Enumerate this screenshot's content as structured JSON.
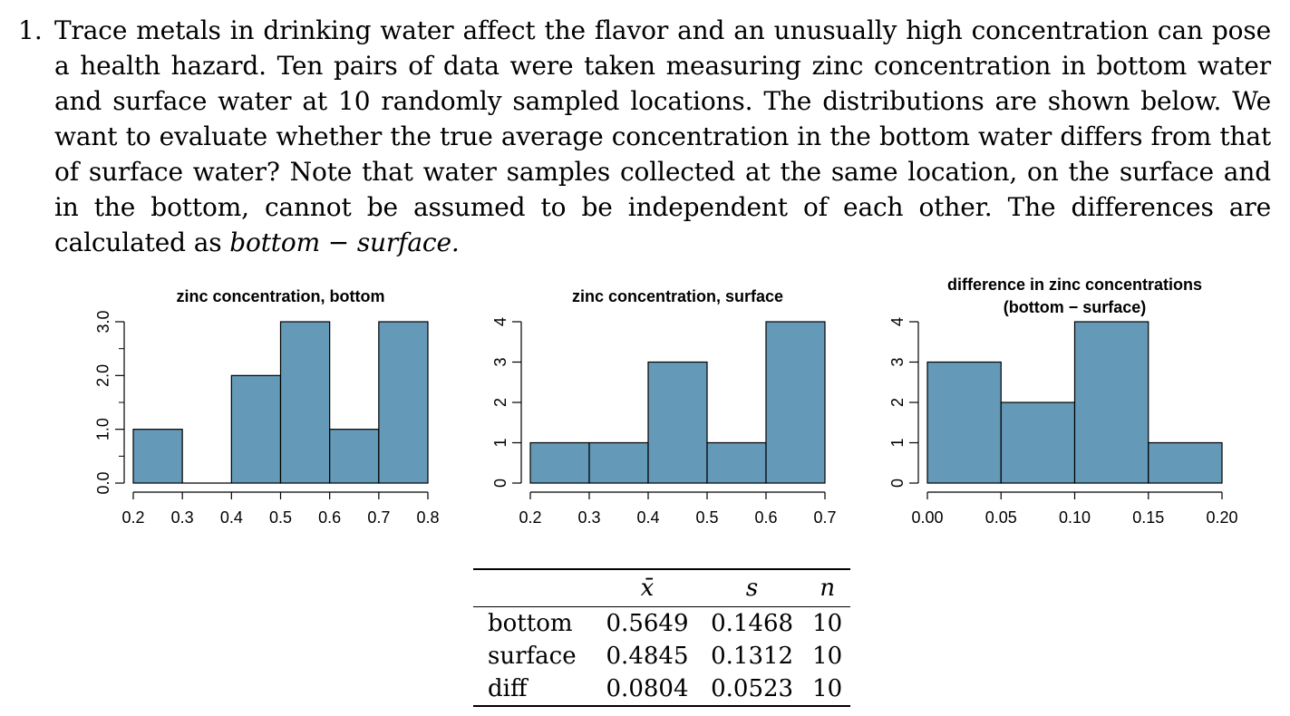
{
  "problem": {
    "number": "1.",
    "text": "Trace metals in drinking water affect the flavor and an unusually high concentration can pose a health hazard.  Ten pairs of data were taken measuring zinc concentration in bottom water and surface water at 10 randomly sampled locations.  The distributions are shown below.  We want to evaluate whether the true average concentration in the bottom water differs from that of surface water? Note that water samples collected at the same location, on the surface and in the bottom, cannot be assumed to be independent of each other.  The differences are calculated as",
    "formula": "bottom − surface."
  },
  "chart_data": [
    {
      "type": "bar",
      "title": "zinc concentration, bottom",
      "bins": [
        [
          0.2,
          0.3
        ],
        [
          0.3,
          0.4
        ],
        [
          0.4,
          0.5
        ],
        [
          0.5,
          0.6
        ],
        [
          0.6,
          0.7
        ],
        [
          0.7,
          0.8
        ]
      ],
      "values": [
        1,
        0,
        2,
        3,
        1,
        3
      ],
      "xlim": [
        0.2,
        0.8
      ],
      "ylim": [
        0,
        3
      ],
      "xticks": [
        "0.2",
        "0.3",
        "0.4",
        "0.5",
        "0.6",
        "0.7",
        "0.8"
      ],
      "yticks": [
        "0.0",
        "1.0",
        "2.0",
        "3.0"
      ],
      "ytick_values": [
        0,
        1,
        2,
        3
      ],
      "yminor": [
        0.5,
        1.5,
        2.5
      ],
      "color": "#6499b8"
    },
    {
      "type": "bar",
      "title": "zinc concentration, surface",
      "bins": [
        [
          0.2,
          0.3
        ],
        [
          0.3,
          0.4
        ],
        [
          0.4,
          0.5
        ],
        [
          0.5,
          0.6
        ],
        [
          0.6,
          0.7
        ]
      ],
      "values": [
        1,
        1,
        3,
        1,
        4
      ],
      "xlim": [
        0.2,
        0.7
      ],
      "ylim": [
        0,
        4
      ],
      "xticks": [
        "0.2",
        "0.3",
        "0.4",
        "0.5",
        "0.6",
        "0.7"
      ],
      "yticks": [
        "0",
        "1",
        "2",
        "3",
        "4"
      ],
      "ytick_values": [
        0,
        1,
        2,
        3,
        4
      ],
      "yminor": [],
      "color": "#6499b8"
    },
    {
      "type": "bar",
      "title": "difference in zinc concentrations\n(bottom − surface)",
      "bins": [
        [
          0.0,
          0.05
        ],
        [
          0.05,
          0.1
        ],
        [
          0.1,
          0.15
        ],
        [
          0.15,
          0.2
        ]
      ],
      "values": [
        3,
        2,
        4,
        1
      ],
      "xlim": [
        0.0,
        0.2
      ],
      "ylim": [
        0,
        4
      ],
      "xticks": [
        "0.00",
        "0.05",
        "0.10",
        "0.15",
        "0.20"
      ],
      "yticks": [
        "0",
        "1",
        "2",
        "3",
        "4"
      ],
      "ytick_values": [
        0,
        1,
        2,
        3,
        4
      ],
      "yminor": [],
      "color": "#6499b8"
    }
  ],
  "summary_table": {
    "headers": [
      "",
      "x̄",
      "s",
      "n"
    ],
    "rows": [
      [
        "bottom",
        "0.5649",
        "0.1468",
        "10"
      ],
      [
        "surface",
        "0.4845",
        "0.1312",
        "10"
      ],
      [
        "diff",
        "0.0804",
        "0.0523",
        "10"
      ]
    ]
  }
}
